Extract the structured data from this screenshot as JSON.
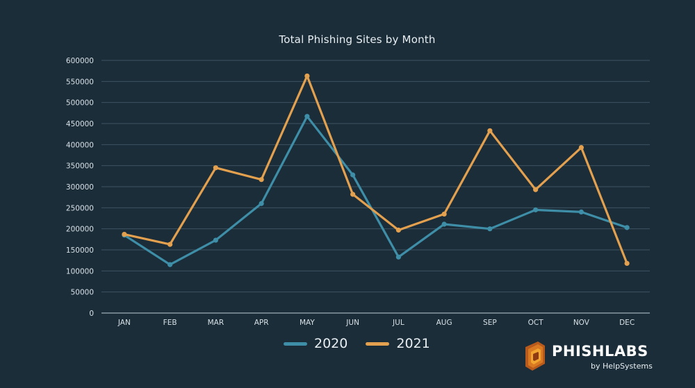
{
  "chart_data": {
    "type": "line",
    "title": "Total Phishing Sites by Month",
    "categories": [
      "JAN",
      "FEB",
      "MAR",
      "APR",
      "MAY",
      "JUN",
      "JUL",
      "AUG",
      "SEP",
      "OCT",
      "NOV",
      "DEC"
    ],
    "series": [
      {
        "name": "2020",
        "color": "#3e8ea8",
        "values": [
          185000,
          115000,
          173000,
          260000,
          467000,
          328000,
          133000,
          211000,
          200000,
          245000,
          240000,
          203000
        ]
      },
      {
        "name": "2021",
        "color": "#e3a04e",
        "values": [
          187000,
          163000,
          345000,
          317000,
          563000,
          282000,
          197000,
          235000,
          433000,
          293000,
          393000,
          118000
        ]
      }
    ],
    "ylim": [
      0,
      600000
    ],
    "yticks": [
      "0",
      "50000",
      "100000",
      "150000",
      "200000",
      "250000",
      "300000",
      "350000",
      "400000",
      "450000",
      "500000",
      "550000",
      "600000"
    ],
    "grid": true,
    "legend_position": "bottom-center"
  },
  "branding": {
    "logo_name": "PHISHLABS",
    "logo_tagline": "by HelpSystems"
  }
}
